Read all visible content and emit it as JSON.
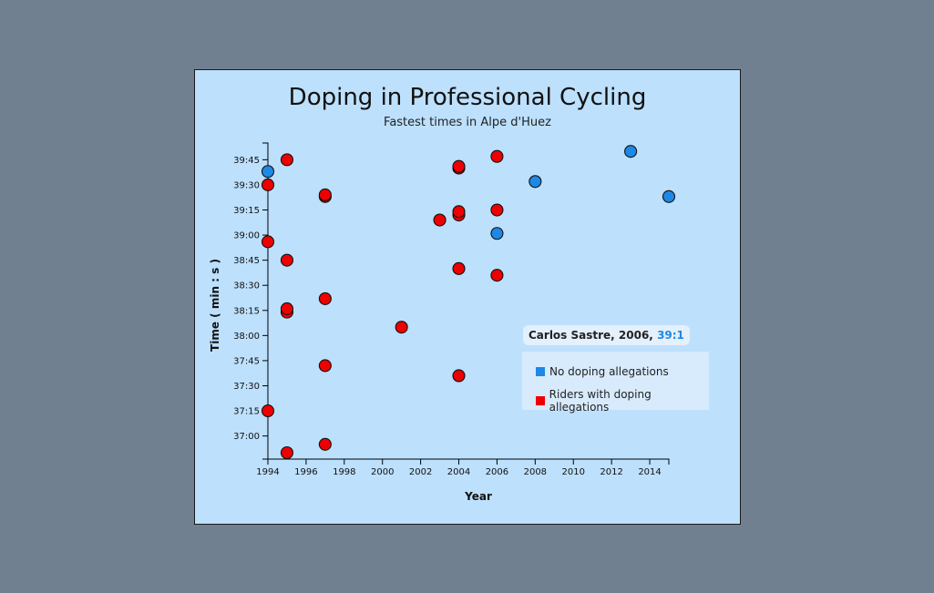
{
  "chart_data": {
    "type": "scatter",
    "title": "Doping in Professional Cycling",
    "subtitle": "Fastest times in Alpe d'Huez",
    "xlabel": "Year",
    "ylabel": "Time ( min : s )",
    "xlim": [
      1994,
      2015
    ],
    "x_ticks": [
      "1994",
      "1996",
      "1998",
      "2000",
      "2002",
      "2004",
      "2006",
      "2008",
      "2010",
      "2012",
      "2014"
    ],
    "ylim": [
      "36:50",
      "39:55"
    ],
    "y_ticks": [
      "37:00",
      "37:15",
      "37:30",
      "37:45",
      "38:00",
      "38:15",
      "38:30",
      "38:45",
      "39:00",
      "39:15",
      "39:30",
      "39:45"
    ],
    "grid": false,
    "legend_position": "right",
    "colors": {
      "no_doping": "#1e88e5",
      "doping": "#ef0000",
      "background": "#bde0fd",
      "page": "#708090"
    },
    "series": [
      {
        "name": "No doping allegations",
        "color": "#1e88e5",
        "points": [
          {
            "x": 1994,
            "y": "39:38"
          },
          {
            "x": 2006,
            "y": "39:01"
          },
          {
            "x": 2008,
            "y": "39:32"
          },
          {
            "x": 2013,
            "y": "39:50"
          },
          {
            "x": 2015,
            "y": "39:23"
          }
        ]
      },
      {
        "name": "Riders with doping allegations",
        "color": "#ef0000",
        "points": [
          {
            "x": 1995,
            "y": "36:50"
          },
          {
            "x": 1997,
            "y": "36:55"
          },
          {
            "x": 1994,
            "y": "37:15"
          },
          {
            "x": 1997,
            "y": "37:42"
          },
          {
            "x": 2004,
            "y": "37:36"
          },
          {
            "x": 2001,
            "y": "38:05"
          },
          {
            "x": 1995,
            "y": "38:14"
          },
          {
            "x": 1995,
            "y": "38:16"
          },
          {
            "x": 1997,
            "y": "38:22"
          },
          {
            "x": 2004,
            "y": "38:40"
          },
          {
            "x": 2006,
            "y": "38:36"
          },
          {
            "x": 1995,
            "y": "38:45"
          },
          {
            "x": 1994,
            "y": "38:56"
          },
          {
            "x": 2003,
            "y": "39:09"
          },
          {
            "x": 2004,
            "y": "39:12"
          },
          {
            "x": 2004,
            "y": "39:14"
          },
          {
            "x": 2006,
            "y": "39:15"
          },
          {
            "x": 1997,
            "y": "39:23"
          },
          {
            "x": 1997,
            "y": "39:24"
          },
          {
            "x": 1994,
            "y": "39:30"
          },
          {
            "x": 2004,
            "y": "39:40"
          },
          {
            "x": 2004,
            "y": "39:41"
          },
          {
            "x": 1995,
            "y": "39:45"
          },
          {
            "x": 2006,
            "y": "39:47"
          }
        ]
      }
    ]
  },
  "tooltip": {
    "name_year": "Carlos Sastre, 2006,",
    "time": "39:1"
  },
  "legend": {
    "items": [
      {
        "label": "No doping allegations",
        "color": "#1e88e5"
      },
      {
        "label": "Riders with doping allegations",
        "color": "#ef0000"
      }
    ]
  }
}
